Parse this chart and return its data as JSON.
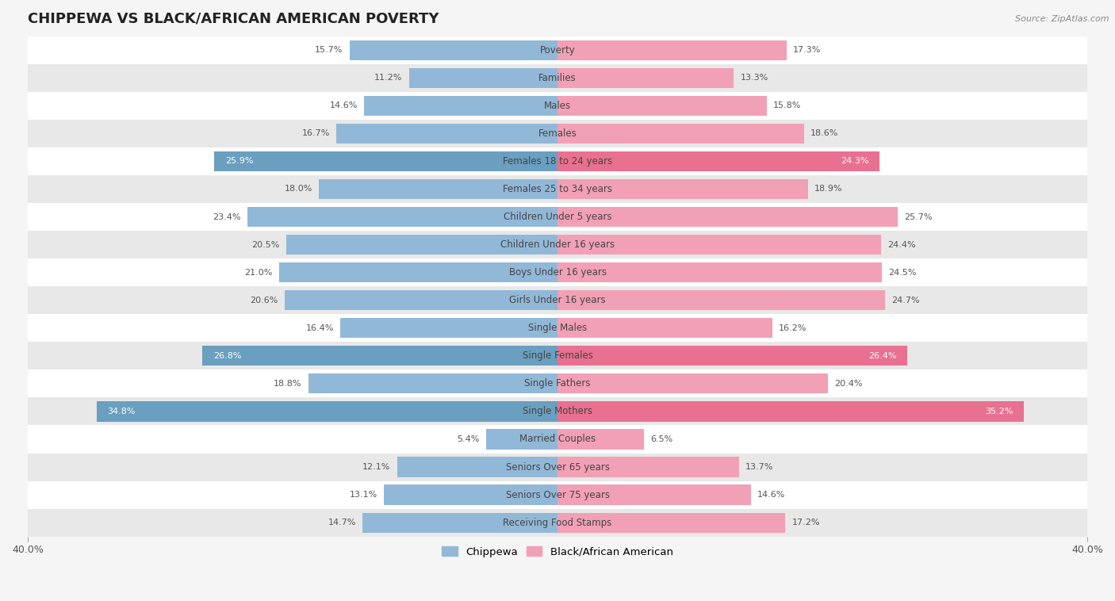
{
  "title": "CHIPPEWA VS BLACK/AFRICAN AMERICAN POVERTY",
  "source": "Source: ZipAtlas.com",
  "categories": [
    "Poverty",
    "Families",
    "Males",
    "Females",
    "Females 18 to 24 years",
    "Females 25 to 34 years",
    "Children Under 5 years",
    "Children Under 16 years",
    "Boys Under 16 years",
    "Girls Under 16 years",
    "Single Males",
    "Single Females",
    "Single Fathers",
    "Single Mothers",
    "Married Couples",
    "Seniors Over 65 years",
    "Seniors Over 75 years",
    "Receiving Food Stamps"
  ],
  "chippewa_values": [
    15.7,
    11.2,
    14.6,
    16.7,
    25.9,
    18.0,
    23.4,
    20.5,
    21.0,
    20.6,
    16.4,
    26.8,
    18.8,
    34.8,
    5.4,
    12.1,
    13.1,
    14.7
  ],
  "black_values": [
    17.3,
    13.3,
    15.8,
    18.6,
    24.3,
    18.9,
    25.7,
    24.4,
    24.5,
    24.7,
    16.2,
    26.4,
    20.4,
    35.2,
    6.5,
    13.7,
    14.6,
    17.2
  ],
  "chippewa_color": "#92b8d8",
  "black_color": "#f2a0b5",
  "chippewa_highlight_color": "#6a9fc0",
  "black_highlight_color": "#e87090",
  "highlight_rows": [
    4,
    11,
    13
  ],
  "axis_max": 40.0,
  "bar_height": 0.72,
  "background_color": "#f5f5f5",
  "row_bg_light": "#ffffff",
  "row_bg_dark": "#e8e8e8",
  "label_fontsize": 8.5,
  "value_fontsize": 8.0,
  "title_fontsize": 13
}
